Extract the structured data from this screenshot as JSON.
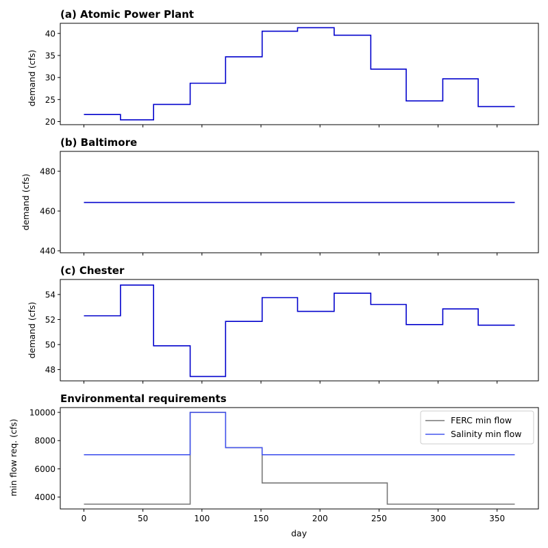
{
  "chart_data": [
    {
      "type": "line",
      "title": "(a) Atomic Power Plant",
      "xlabel": "",
      "ylabel": "demand (cfs)",
      "xlim": [
        -20,
        385
      ],
      "ylim": [
        19.3,
        42.3
      ],
      "yticks": [
        20,
        25,
        30,
        35,
        40
      ],
      "xticks": [
        0,
        50,
        100,
        150,
        200,
        250,
        300,
        350
      ],
      "series": [
        {
          "color": "#0000cc",
          "steps": [
            [
              0,
              21.6
            ],
            [
              31,
              20.4
            ],
            [
              59,
              23.9
            ],
            [
              90,
              28.7
            ],
            [
              120,
              34.7
            ],
            [
              151,
              40.5
            ],
            [
              181,
              41.3
            ],
            [
              212,
              39.6
            ],
            [
              243,
              31.9
            ],
            [
              273,
              24.7
            ],
            [
              304,
              29.7
            ],
            [
              334,
              23.4
            ],
            [
              365,
              23.4
            ]
          ]
        }
      ]
    },
    {
      "type": "line",
      "title": "(b) Baltimore",
      "xlabel": "",
      "ylabel": "demand (cfs)",
      "xlim": [
        -20,
        385
      ],
      "ylim": [
        439,
        490
      ],
      "yticks": [
        440,
        460,
        480
      ],
      "xticks": [
        0,
        50,
        100,
        150,
        200,
        250,
        300,
        350
      ],
      "series": [
        {
          "color": "#0000cc",
          "steps": [
            [
              0,
              464.3
            ],
            [
              365,
              464.3
            ]
          ]
        }
      ]
    },
    {
      "type": "line",
      "title": "(c) Chester",
      "xlabel": "",
      "ylabel": "demand (cfs)",
      "xlim": [
        -20,
        385
      ],
      "ylim": [
        47.1,
        55.2
      ],
      "yticks": [
        48,
        50,
        52,
        54
      ],
      "xticks": [
        0,
        50,
        100,
        150,
        200,
        250,
        300,
        350
      ],
      "series": [
        {
          "color": "#0000cc",
          "steps": [
            [
              0,
              52.3
            ],
            [
              31,
              54.75
            ],
            [
              59,
              49.9
            ],
            [
              90,
              47.45
            ],
            [
              120,
              51.85
            ],
            [
              151,
              53.75
            ],
            [
              181,
              52.65
            ],
            [
              212,
              54.1
            ],
            [
              243,
              53.2
            ],
            [
              273,
              51.6
            ],
            [
              304,
              52.85
            ],
            [
              334,
              51.55
            ],
            [
              365,
              51.55
            ]
          ]
        }
      ]
    },
    {
      "type": "line",
      "title": "Environmental requirements",
      "xlabel": "day",
      "ylabel": "min flow req. (cfs)",
      "xlim": [
        -20,
        385
      ],
      "ylim": [
        3160,
        10340
      ],
      "yticks": [
        4000,
        6000,
        8000,
        10000
      ],
      "xticks": [
        0,
        50,
        100,
        150,
        200,
        250,
        300,
        350
      ],
      "legend": "top-right",
      "series": [
        {
          "name": "FERC min flow",
          "color": "#777777",
          "steps": [
            [
              0,
              3500
            ],
            [
              90,
              10000
            ],
            [
              120,
              7500
            ],
            [
              151,
              5000
            ],
            [
              257,
              3500
            ],
            [
              365,
              3500
            ]
          ]
        },
        {
          "name": "Salinity min flow",
          "color": "#4455ee",
          "steps": [
            [
              0,
              7000
            ],
            [
              90,
              10000
            ],
            [
              120,
              7500
            ],
            [
              151,
              7000
            ],
            [
              365,
              7000
            ]
          ]
        }
      ]
    }
  ]
}
